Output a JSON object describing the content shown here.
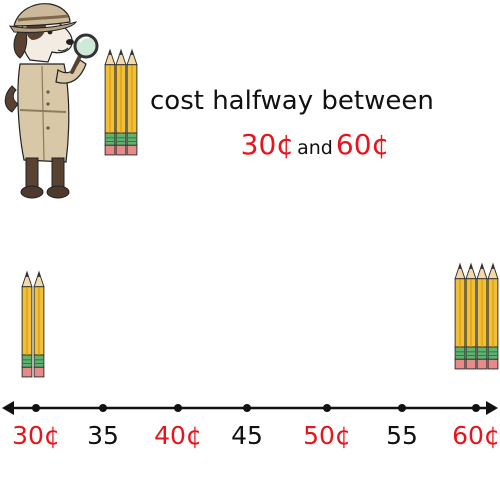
{
  "heading": "cost halfway between",
  "low_price": "30¢",
  "joiner": "and",
  "high_price": "60¢",
  "number_line": {
    "ticks": [
      {
        "label": "30¢",
        "value": 30,
        "color": "#e8141c"
      },
      {
        "label": "35",
        "value": 35,
        "color": "#111111"
      },
      {
        "label": "40¢",
        "value": 40,
        "color": "#e8141c"
      },
      {
        "label": "45",
        "value": 45,
        "color": "#111111"
      },
      {
        "label": "50¢",
        "value": 50,
        "color": "#e8141c"
      },
      {
        "label": "55",
        "value": 55,
        "color": "#111111"
      },
      {
        "label": "60¢",
        "value": 60,
        "color": "#e8141c"
      }
    ]
  },
  "pencil_groups": {
    "header": 3,
    "low": 2,
    "high": 4
  },
  "colors": {
    "price": "#e8141c",
    "pencil": "#f2c037",
    "eraser": "#e88a8a",
    "band": "#3aa35c"
  },
  "icons": [
    "detective-dog-icon",
    "magnifying-glass-icon",
    "pencil-icon"
  ]
}
